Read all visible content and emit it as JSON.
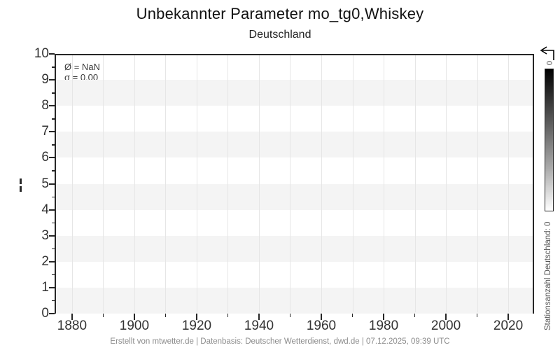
{
  "chart_data": {
    "type": "line",
    "title": "Unbekannter Parameter mo_tg0,Whiskey",
    "subtitle": "Deutschland",
    "series": [],
    "note": "empty plot - no data series drawn",
    "annotations": [
      "Ø = NaN",
      "σ = 0.00"
    ],
    "xlim": [
      1874.4,
      2028.3
    ],
    "ylim": [
      0,
      10
    ],
    "x_ticks": [
      1880,
      1900,
      1920,
      1940,
      1960,
      1980,
      2000,
      2020
    ],
    "x_minor_ticks": [
      1890,
      1910,
      1930,
      1950,
      1970,
      1990,
      2010
    ],
    "x_gridline_years": [
      1880,
      1890,
      1900,
      1910,
      1920,
      1930,
      1940,
      1950,
      1960,
      1970,
      1980,
      1990,
      2000,
      2010,
      2020
    ],
    "y_ticks": [
      0,
      1,
      2,
      3,
      4,
      5,
      6,
      7,
      8,
      9,
      10
    ],
    "y_minor_step": 0.5,
    "shaded_bands": [
      [
        0,
        1
      ],
      [
        2,
        3
      ],
      [
        4,
        5
      ],
      [
        6,
        7
      ],
      [
        8,
        9
      ]
    ],
    "grid": "vertical decade gridlines, alternating horizontal bands",
    "legend": "none",
    "colorbar": {
      "top_tick": "0",
      "label": "Stationsanzahl Deutschland: 0",
      "gradient_top": "#000000",
      "gradient_bottom": "#ffffff"
    },
    "footer": "Erstellt von mtwetter.de | Datenbasis: Deutscher Wetterdienst, dwd.de | 07.12.2025, 09:39 UTC",
    "colors": {
      "band": "#f4f4f4",
      "gridline": "#e6e6e6",
      "axis": "#262626",
      "tick_label": "#333333"
    }
  }
}
